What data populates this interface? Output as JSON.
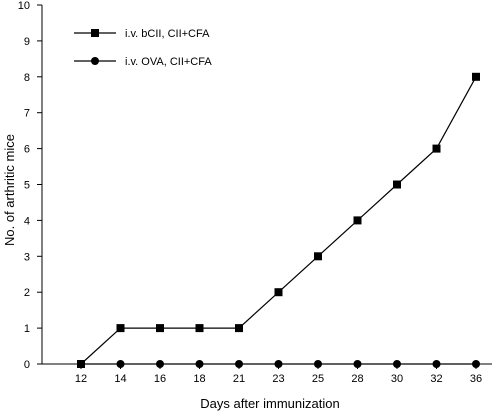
{
  "chart_data": {
    "type": "line",
    "title": "",
    "xlabel": "Days after immunization",
    "ylabel": "No. of arthritic mice",
    "categories": [
      "12",
      "14",
      "16",
      "18",
      "21",
      "23",
      "25",
      "28",
      "30",
      "32",
      "36"
    ],
    "ylim": [
      0,
      10
    ],
    "yticks": [
      "0",
      "1",
      "2",
      "3",
      "4",
      "5",
      "6",
      "7",
      "8",
      "9",
      "10"
    ],
    "grid": false,
    "legend_position": "top-left",
    "series": [
      {
        "name": "i.v. bCII, CII+CFA",
        "marker": "square",
        "color": "#000000",
        "values": [
          0,
          1,
          1,
          1,
          1,
          2,
          3,
          4,
          5,
          6,
          8
        ]
      },
      {
        "name": "i.v. OVA, CII+CFA",
        "marker": "circle",
        "color": "#000000",
        "values": [
          0,
          0,
          0,
          0,
          0,
          0,
          0,
          0,
          0,
          0,
          0
        ]
      }
    ]
  }
}
